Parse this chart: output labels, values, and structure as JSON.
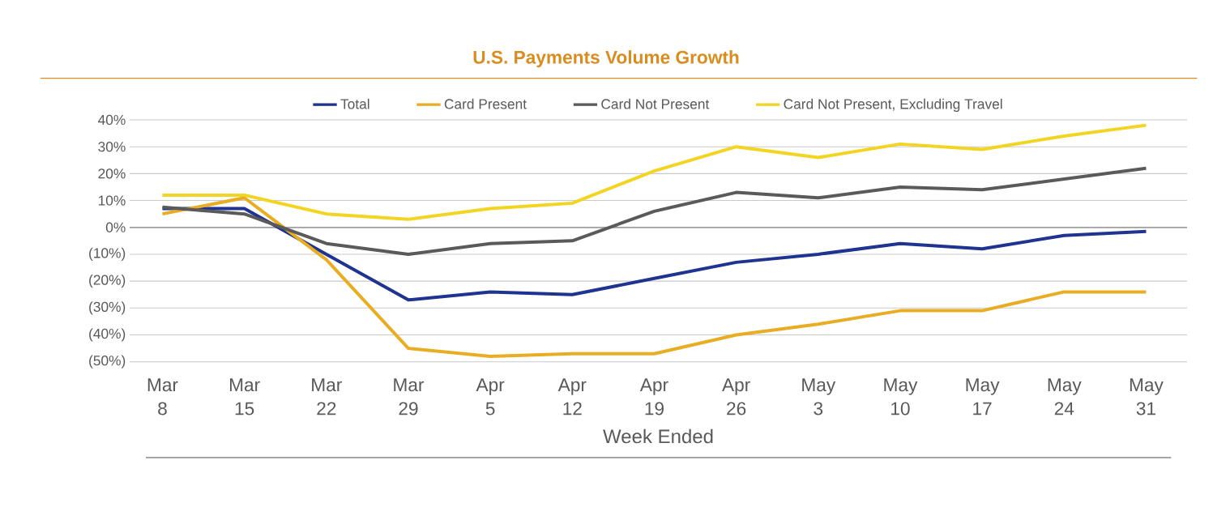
{
  "chart_data": {
    "type": "line",
    "title": "U.S. Payments Volume Growth",
    "xlabel": "Week Ended",
    "categories": [
      "Mar 8",
      "Mar 15",
      "Mar 22",
      "Mar 29",
      "Apr 5",
      "Apr 12",
      "Apr 19",
      "Apr 26",
      "May 3",
      "May 10",
      "May 17",
      "May 24",
      "May 31"
    ],
    "series": [
      {
        "name": "Total",
        "color": "#1f3391",
        "values": [
          7,
          7,
          -10,
          -27,
          -24,
          -25,
          -19,
          -13,
          -10,
          -6,
          -8,
          -3,
          -1.5
        ]
      },
      {
        "name": "Card Present",
        "color": "#e8ad23",
        "values": [
          5,
          11,
          -12,
          -45,
          -48,
          -47,
          -47,
          -40,
          -36,
          -31,
          -31,
          -24,
          -24
        ]
      },
      {
        "name": "Card Not Present",
        "color": "#5a5a5a",
        "values": [
          7.5,
          5,
          -6,
          -10,
          -6,
          -5,
          6,
          13,
          11,
          15,
          14,
          18,
          22
        ]
      },
      {
        "name": "Card Not Present, Excluding Travel",
        "color": "#f2d422",
        "values": [
          12,
          12,
          5,
          3,
          7,
          9,
          21,
          30,
          26,
          31,
          29,
          34,
          38
        ]
      }
    ],
    "ylim": [
      -50,
      40
    ],
    "yticks": [
      {
        "value": 40,
        "label": "40%"
      },
      {
        "value": 30,
        "label": "30%"
      },
      {
        "value": 20,
        "label": "20%"
      },
      {
        "value": 10,
        "label": "10%"
      },
      {
        "value": 0,
        "label": "0%"
      },
      {
        "value": -10,
        "label": "(10%)"
      },
      {
        "value": -20,
        "label": "(20%)"
      },
      {
        "value": -30,
        "label": "(30%)"
      },
      {
        "value": -40,
        "label": "(40%)"
      },
      {
        "value": -50,
        "label": "(50%)"
      }
    ],
    "ref_lines": [
      {
        "axis": "y",
        "value": 0,
        "color": "#a0a0a0"
      }
    ],
    "grid": "y",
    "legend": "top"
  }
}
